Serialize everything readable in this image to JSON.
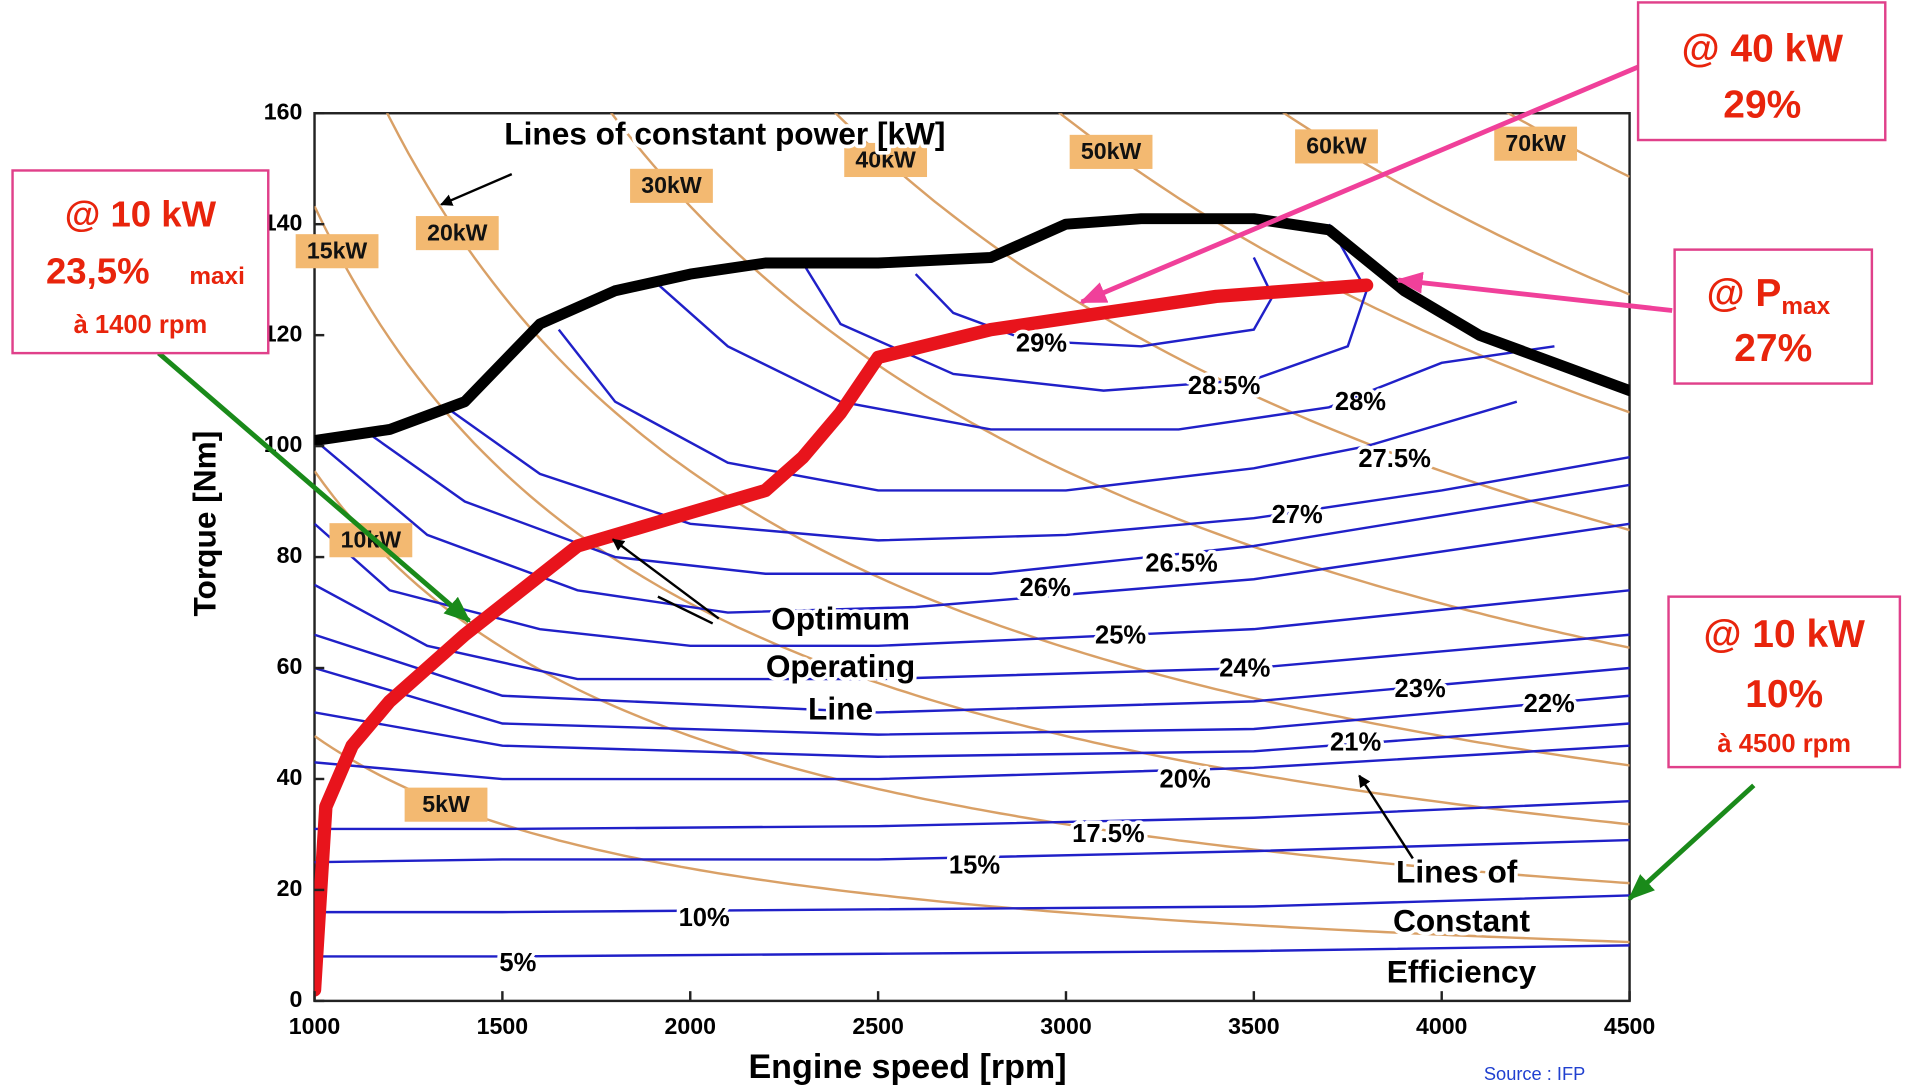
{
  "chart_data": {
    "type": "engine-map",
    "xlabel": "Engine speed [rpm]",
    "ylabel": "Torque  [Nm]",
    "xlim": [
      1000,
      4500
    ],
    "ylim": [
      0,
      160
    ],
    "xticks": [
      1000,
      1500,
      2000,
      2500,
      3000,
      3500,
      4000,
      4500
    ],
    "yticks": [
      0,
      20,
      40,
      60,
      80,
      100,
      120,
      140,
      160
    ],
    "max_torque": {
      "color": "#000000",
      "x": [
        1000,
        1200,
        1400,
        1600,
        1800,
        2000,
        2200,
        2500,
        2800,
        3000,
        3200,
        3500,
        3700,
        3900,
        4100,
        4300,
        4500
      ],
      "values": [
        101,
        103,
        108,
        122,
        128,
        131,
        133,
        133,
        134,
        140,
        141,
        141,
        139,
        128,
        120,
        115,
        110
      ]
    },
    "optimum_line": {
      "color": "#e8141c",
      "x": [
        1000,
        1030,
        1100,
        1200,
        1400,
        1700,
        2000,
        2200,
        2300,
        2400,
        2500,
        2800,
        3100,
        3400,
        3800
      ],
      "values": [
        2,
        35,
        46,
        54,
        66,
        82,
        88,
        92,
        98,
        106,
        116,
        121,
        124,
        127,
        129
      ]
    },
    "power_lines": {
      "color": "#d9a066",
      "values": [
        5,
        10,
        15,
        20,
        30,
        40,
        50,
        60,
        70
      ],
      "value_labels": [
        "5kW",
        "10kW",
        "15kW",
        "20kW",
        "30kW",
        "40kW",
        "50kW",
        "60kW",
        "70kW"
      ]
    },
    "efficiency_lines": {
      "color": "#2020c8",
      "values": [
        5,
        10,
        15,
        17.5,
        20,
        21,
        22,
        23,
        24,
        25,
        26,
        26.5,
        27,
        27.5,
        28,
        28.5,
        29
      ],
      "value_labels": [
        "5%",
        "10%",
        "15%",
        "17.5%",
        "20%",
        "21%",
        "22%",
        "23%",
        "24%",
        "25%",
        "26%",
        "26.5%",
        "27%",
        "27.5%",
        "28%",
        "28.5%",
        "29%"
      ],
      "x": [
        [
          1000,
          1500,
          2500,
          3500,
          4500
        ],
        [
          1000,
          1500,
          2500,
          3500,
          4500
        ],
        [
          1000,
          1500,
          2500,
          3500,
          4500
        ],
        [
          1000,
          1500,
          2500,
          3500,
          4500
        ],
        [
          1000,
          1500,
          2500,
          3500,
          4500
        ],
        [
          1000,
          1500,
          2500,
          3500,
          4500
        ],
        [
          1000,
          1500,
          2500,
          3500,
          4500
        ],
        [
          1000,
          1500,
          2500,
          3500,
          4500
        ],
        [
          1000,
          1300,
          1700,
          2500,
          3500,
          4500
        ],
        [
          1000,
          1200,
          1600,
          2000,
          2500,
          3500,
          4500
        ],
        [
          1020,
          1300,
          1700,
          2100,
          2600,
          3500,
          4500
        ],
        [
          1150,
          1400,
          1800,
          2200,
          2800,
          3500,
          4500
        ],
        [
          1350,
          1600,
          2000,
          2500,
          3000,
          3500,
          4000,
          4500
        ],
        [
          1650,
          1800,
          2100,
          2500,
          3000,
          3500,
          3800,
          4200
        ],
        [
          1900,
          2100,
          2400,
          2800,
          3300,
          3700,
          4000,
          4300
        ],
        [
          2300,
          2400,
          2700,
          3100,
          3500,
          3750,
          3800,
          3700
        ],
        [
          2600,
          2700,
          2900,
          3200,
          3500,
          3550,
          3500
        ]
      ],
      "y": [
        [
          8,
          8,
          8.5,
          9,
          10
        ],
        [
          16,
          16,
          16.5,
          17,
          19
        ],
        [
          25,
          25.5,
          25.5,
          27,
          29
        ],
        [
          31,
          31,
          31.5,
          33,
          36
        ],
        [
          43,
          40,
          40,
          42,
          46
        ],
        [
          52,
          46,
          44,
          45,
          50
        ],
        [
          60,
          50,
          48,
          49,
          55
        ],
        [
          66,
          55,
          52,
          54,
          60
        ],
        [
          75,
          64,
          58,
          58,
          60,
          66
        ],
        [
          86,
          74,
          67,
          64,
          64,
          67,
          74
        ],
        [
          100,
          84,
          74,
          70,
          71,
          76,
          86
        ],
        [
          102,
          90,
          80,
          77,
          77,
          82,
          93
        ],
        [
          107,
          95,
          86,
          83,
          84,
          87,
          92,
          98
        ],
        [
          121,
          108,
          97,
          92,
          92,
          96,
          100,
          108
        ],
        [
          130,
          118,
          108,
          103,
          103,
          107,
          115,
          118
        ],
        [
          133,
          122,
          113,
          110,
          112,
          118,
          128,
          140
        ],
        [
          131,
          124,
          119,
          118,
          121,
          127,
          134
        ]
      ]
    },
    "annotations": [
      "Lines of constant power [kW]",
      "Optimum",
      "Operating",
      "Line",
      "Lines of",
      "Constant",
      "Efficiency"
    ]
  },
  "callouts": [
    {
      "lines": [
        "@ 40 kW",
        "29%"
      ]
    },
    {
      "lines": [
        "@ 10 kW",
        "23,5%",
        "maxi",
        "à 1400 rpm"
      ]
    },
    {
      "lines": [
        "@ P",
        "max",
        "27%"
      ]
    },
    {
      "lines": [
        "@ 10 kW",
        "10%",
        "à 4500 rpm"
      ]
    }
  ],
  "source": "Source : IFP"
}
